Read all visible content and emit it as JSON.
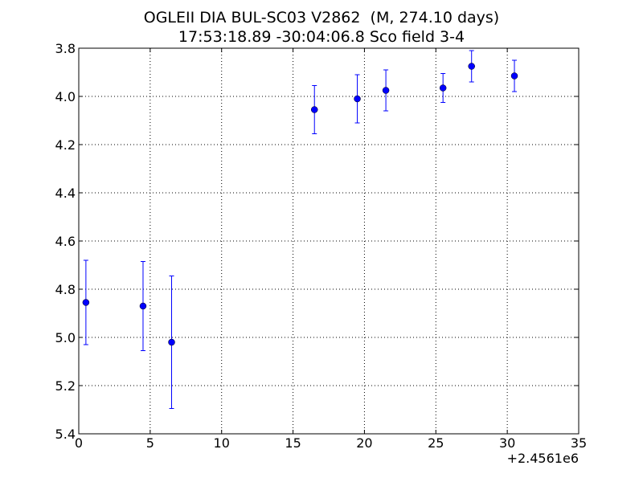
{
  "chart_data": {
    "type": "scatter",
    "title": "OGLEII DIA BUL-SC03 V2862  (M, 274.10 days)",
    "subtitle": "17:53:18.89 -30:04:06.8 Sco field 3-4",
    "xlabel": "",
    "ylabel": "",
    "x_offset_label": "+2.4561e6",
    "xlim": [
      0,
      35
    ],
    "ylim": [
      3.8,
      5.4
    ],
    "y_inverted": true,
    "x_ticks": [
      0,
      5,
      10,
      15,
      20,
      25,
      30,
      35
    ],
    "x_tick_labels": [
      "0",
      "5",
      "10",
      "15",
      "20",
      "25",
      "30",
      "35"
    ],
    "y_ticks": [
      3.8,
      4.0,
      4.2,
      4.4,
      4.6,
      4.8,
      5.0,
      5.2,
      5.4
    ],
    "y_tick_labels": [
      "3.8",
      "4.0",
      "4.2",
      "4.4",
      "4.6",
      "4.8",
      "5.0",
      "5.2",
      "5.4"
    ],
    "grid": true,
    "marker_color": "#0000ff",
    "points": [
      {
        "x": 0.5,
        "y": 4.855,
        "err": 0.175
      },
      {
        "x": 4.5,
        "y": 4.87,
        "err": 0.185
      },
      {
        "x": 6.5,
        "y": 5.02,
        "err": 0.275
      },
      {
        "x": 16.5,
        "y": 4.055,
        "err": 0.1
      },
      {
        "x": 19.5,
        "y": 4.01,
        "err": 0.1
      },
      {
        "x": 21.5,
        "y": 3.975,
        "err": 0.085
      },
      {
        "x": 25.5,
        "y": 3.965,
        "err": 0.06
      },
      {
        "x": 27.5,
        "y": 3.875,
        "err": 0.065
      },
      {
        "x": 30.5,
        "y": 3.915,
        "err": 0.065
      }
    ]
  }
}
